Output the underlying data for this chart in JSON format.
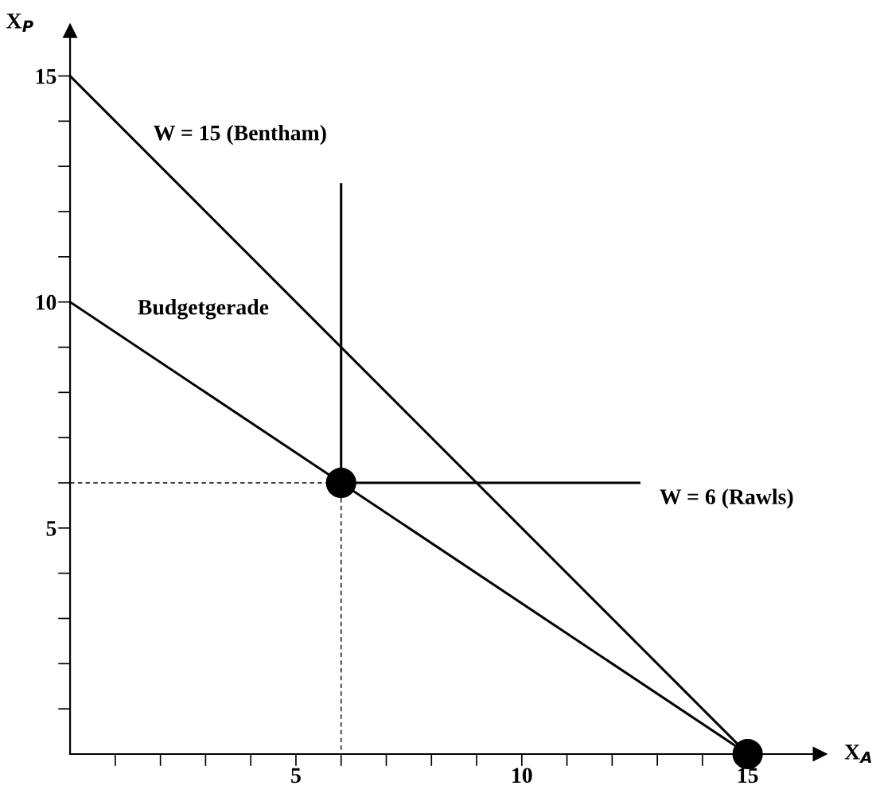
{
  "chart_data": {
    "type": "line",
    "xlabel": "X$_{A}$",
    "ylabel": "X$_{P}$",
    "xlim": [
      0,
      16.6
    ],
    "ylim": [
      0,
      16
    ],
    "xticks": [
      {
        "value": 1,
        "label": null
      },
      {
        "value": 2,
        "label": null
      },
      {
        "value": 3,
        "label": null
      },
      {
        "value": 4,
        "label": null
      },
      5,
      {
        "value": 6,
        "label": null
      },
      {
        "value": 7,
        "label": null
      },
      {
        "value": 8,
        "label": null
      },
      {
        "value": 9,
        "label": null
      },
      10,
      {
        "value": 11,
        "label": null
      },
      {
        "value": 12,
        "label": null
      },
      {
        "value": 13,
        "label": null
      },
      {
        "value": 14,
        "label": null
      },
      15
    ],
    "yticks": [
      {
        "value": 1,
        "label": null
      },
      {
        "value": 2,
        "label": null
      },
      {
        "value": 3,
        "label": null
      },
      {
        "value": 4,
        "label": null
      },
      5,
      {
        "value": 6,
        "label": null
      },
      {
        "value": 7,
        "label": null
      },
      {
        "value": 8,
        "label": null
      },
      {
        "value": 9,
        "label": null
      },
      10,
      {
        "value": 11,
        "label": null
      },
      {
        "value": 12,
        "label": null
      },
      {
        "value": 13,
        "label": null
      },
      {
        "value": 14,
        "label": null
      },
      15
    ],
    "series": [
      {
        "x": [
          0,
          15
        ],
        "values": [
          15,
          0
        ],
        "color": "#000000",
        "line_style": "solid"
      },
      {
        "x": [
          0,
          15
        ],
        "values": [
          10,
          0
        ],
        "color": "#000000",
        "line_style": "solid"
      },
      {
        "x": [
          6,
          6,
          12.6
        ],
        "values": [
          12.6,
          6,
          6
        ],
        "color": "#000000",
        "line_style": "solid"
      },
      {
        "x": [
          0,
          6,
          6
        ],
        "values": [
          6,
          6,
          0
        ],
        "color": "#000000",
        "line_style": "dashed"
      },
      {
        "type": "scatter",
        "x": [
          6,
          15
        ],
        "values": [
          6,
          0
        ],
        "color": "#000000",
        "marker": "circle"
      }
    ],
    "annotations": [
      "W = 15 (Bentham)",
      "Budgetgerade",
      "W = 6 (Rawls)"
    ]
  }
}
